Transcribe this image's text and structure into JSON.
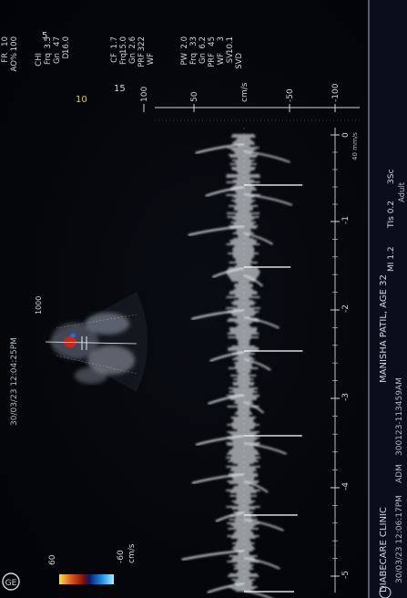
{
  "header": {
    "date_time": "30/03/23 12:04:25PM",
    "clinic": "DIABECARE CLINIC",
    "patient": "MANISHA PATIL, AGE 32",
    "footer_time": "30/03/23 12:06:17PM",
    "operator": "ADM",
    "study_id": "300123-113459AM",
    "mi": "MI 1.2",
    "tis": "TIs 0.2",
    "probe": "3Sc",
    "preset": "Adult",
    "logo": "GE"
  },
  "params_top": [
    {
      "label": "FR",
      "value": "10"
    },
    {
      "label": "AO%",
      "value": "100"
    }
  ],
  "params_chi": [
    {
      "label": "CHI",
      "value": ""
    },
    {
      "label": "Frq",
      "value": "3.5"
    },
    {
      "label": "Gn",
      "value": "47"
    },
    {
      "label": "D",
      "value": "16.0"
    }
  ],
  "params_cf": [
    {
      "label": "CF",
      "value": "1.7"
    },
    {
      "label": "Frq",
      "value": "15.0"
    },
    {
      "label": "Gn",
      "value": "2.6"
    },
    {
      "label": "PRF",
      "value": "322"
    },
    {
      "label": "WF",
      "value": ""
    }
  ],
  "params_pw": [
    {
      "label": "PW",
      "value": "2.0"
    },
    {
      "label": "Frq",
      "value": "33"
    },
    {
      "label": "Gn",
      "value": "6.2"
    },
    {
      "label": "PRF",
      "value": "45"
    },
    {
      "label": "WF",
      "value": "3"
    },
    {
      "label": "SV",
      "value": "10.1"
    },
    {
      "label": "SVD",
      "value": ""
    }
  ],
  "side_marks": {
    "five": "5",
    "ten": "10",
    "fifteen": "15"
  },
  "velocity_scale": {
    "unit": "cm/s",
    "ticks": [
      "100",
      "50",
      "-50",
      "-100"
    ]
  },
  "time_axis": {
    "ticks": [
      "0",
      "-1",
      "-2",
      "-3",
      "-4",
      "-5"
    ],
    "sweep_label": "40 mm/s"
  },
  "color_bar": {
    "max": "60",
    "min": "-60",
    "unit": "cm/s"
  },
  "sector_label": "1000",
  "colors": {
    "trace": "#e8edf2",
    "text": "#cfd6e0",
    "doppler_red": "#c8261c",
    "doppler_blue": "#1d8fe0"
  }
}
